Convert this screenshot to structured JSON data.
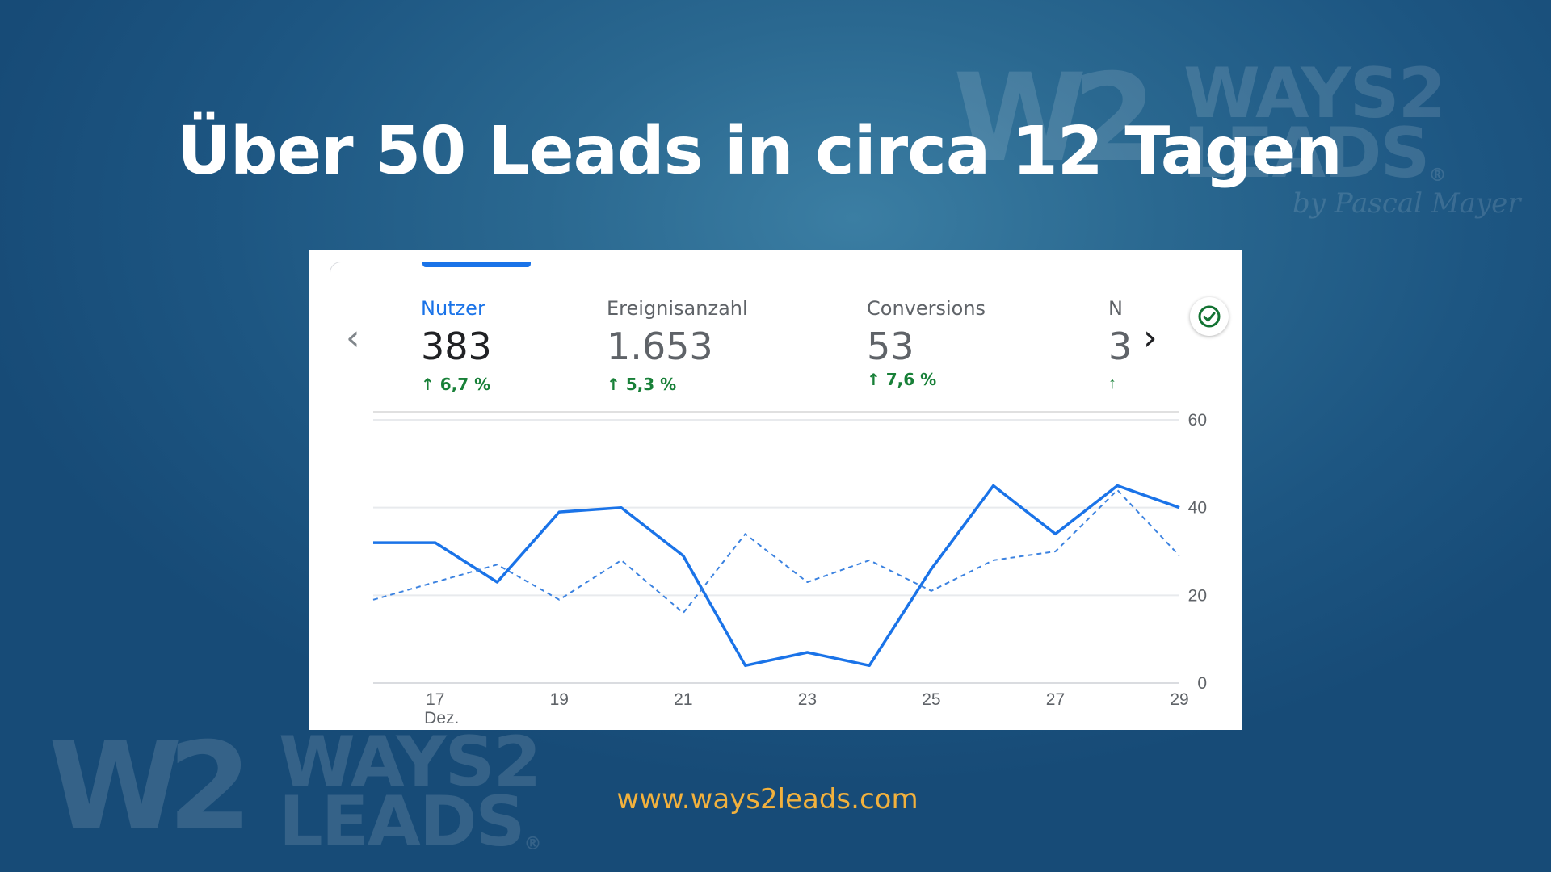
{
  "headline": "Über 50 Leads in circa 12 Tagen",
  "website": "www.ways2leads.com",
  "logo": {
    "mark": "W2",
    "line1": "WAYS2",
    "line2": "LEADS",
    "byline": "by Pascal Mayer",
    "registered": "®"
  },
  "colors": {
    "accent": "#1a73e8",
    "positive": "#188038",
    "website": "#f2b13d",
    "background": "#1d5682"
  },
  "metrics": [
    {
      "label": "Nutzer",
      "value": "383",
      "change": "6,7 %"
    },
    {
      "label": "Ereignisanzahl",
      "value": "1.653",
      "change": "5,3 %"
    },
    {
      "label": "Conversions",
      "value": "53",
      "change": "7,6 %"
    },
    {
      "label": "N",
      "value": "3",
      "change": ""
    }
  ],
  "icons": {
    "prev": "chevron-left-icon",
    "next": "chevron-right-icon",
    "status": "check-circle-icon",
    "trend": "arrow-up-icon"
  },
  "chart_data": {
    "type": "line",
    "x": [
      16,
      17,
      18,
      19,
      20,
      21,
      22,
      23,
      24,
      25,
      26,
      27,
      28,
      29
    ],
    "x_ticks": [
      17,
      19,
      21,
      23,
      25,
      27,
      29
    ],
    "x_tick_sublabel": {
      "tick": 17,
      "text": "Dez."
    },
    "ylim": [
      0,
      60
    ],
    "y_ticks": [
      0,
      20,
      40,
      60
    ],
    "grid": true,
    "series": [
      {
        "style": "solid",
        "values": [
          32,
          32,
          23,
          39,
          40,
          29,
          4,
          7,
          4,
          26,
          45,
          34,
          45,
          40
        ]
      },
      {
        "style": "dashed",
        "values": [
          19,
          23,
          27,
          19,
          28,
          16,
          34,
          23,
          28,
          21,
          28,
          30,
          44,
          29
        ]
      }
    ]
  }
}
